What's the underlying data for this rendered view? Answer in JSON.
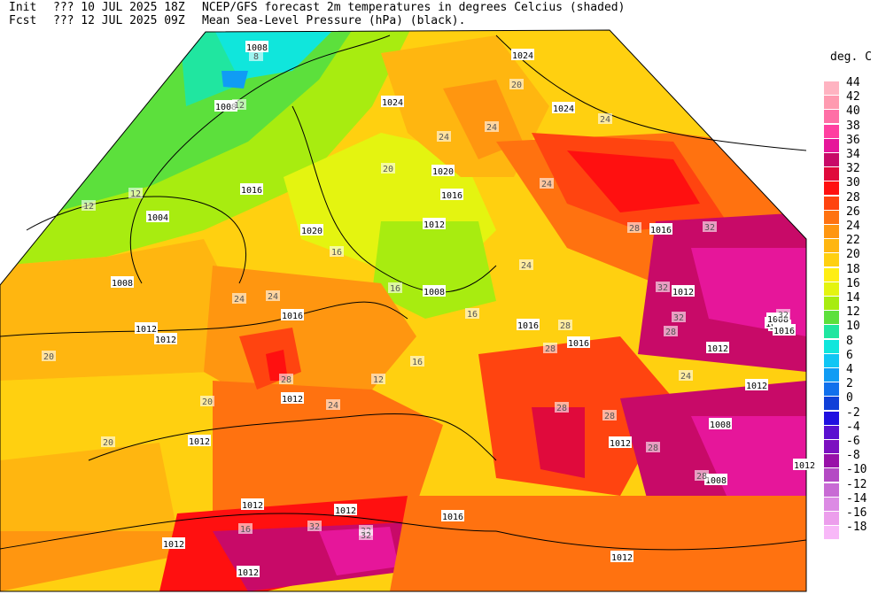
{
  "header": {
    "init_label": "Init",
    "init_time": "??? 10 JUL 2025 18Z",
    "fcst_label": "Fcst",
    "fcst_time": "??? 12 JUL 2025 09Z",
    "title_line1": "NCEP/GFS forecast 2m temperatures in degrees Celcius (shaded)",
    "title_line2": "Mean Sea-Level Pressure (hPa) (black)."
  },
  "colorbar": {
    "unit": "deg. C",
    "levels": [
      {
        "label": "44",
        "color": "#ffb3c1"
      },
      {
        "label": "42",
        "color": "#ff9ab0"
      },
      {
        "label": "40",
        "color": "#ff6fa6"
      },
      {
        "label": "38",
        "color": "#ff3fa0"
      },
      {
        "label": "36",
        "color": "#e6169a"
      },
      {
        "label": "34",
        "color": "#c80a68"
      },
      {
        "label": "32",
        "color": "#e00a3c"
      },
      {
        "label": "30",
        "color": "#ff1010"
      },
      {
        "label": "28",
        "color": "#ff4410"
      },
      {
        "label": "26",
        "color": "#ff7210"
      },
      {
        "label": "24",
        "color": "#ff9610"
      },
      {
        "label": "22",
        "color": "#ffb610"
      },
      {
        "label": "20",
        "color": "#ffd010"
      },
      {
        "label": "18",
        "color": "#ffee14"
      },
      {
        "label": "16",
        "color": "#e4f410"
      },
      {
        "label": "14",
        "color": "#a8ec10"
      },
      {
        "label": "12",
        "color": "#5ce03c"
      },
      {
        "label": "10",
        "color": "#20e6a0"
      },
      {
        "label": "8",
        "color": "#10e6dc"
      },
      {
        "label": "6",
        "color": "#10c6f4"
      },
      {
        "label": "4",
        "color": "#109cf4"
      },
      {
        "label": "2",
        "color": "#1070ec"
      },
      {
        "label": "0",
        "color": "#1040d8"
      },
      {
        "label": "-2",
        "color": "#2010e0"
      },
      {
        "label": "-4",
        "color": "#5a10d0"
      },
      {
        "label": "-6",
        "color": "#7c10c0"
      },
      {
        "label": "-8",
        "color": "#9810a8"
      },
      {
        "label": "-10",
        "color": "#b44ac4"
      },
      {
        "label": "-12",
        "color": "#c86ad4"
      },
      {
        "label": "-14",
        "color": "#dc8ae4"
      },
      {
        "label": "-16",
        "color": "#ec9eec"
      },
      {
        "label": "-18",
        "color": "#f8b8f8"
      }
    ]
  },
  "isobar_labels": [
    "1008",
    "1008",
    "1004",
    "1008",
    "1012",
    "1012",
    "1016",
    "1020",
    "1016",
    "1012",
    "1012",
    "1024",
    "1024",
    "1024",
    "1020",
    "1016",
    "1016",
    "1012",
    "1008",
    "1008",
    "1016",
    "1016",
    "1012",
    "1012",
    "1012",
    "1012",
    "1012",
    "1012",
    "1012",
    "1012",
    "1016",
    "1012",
    "1012",
    "1012",
    "1016",
    "1012",
    "1008",
    "1008"
  ],
  "temperature_labels": [
    "8",
    "12",
    "12",
    "12",
    "16",
    "16",
    "20",
    "20",
    "20",
    "20",
    "20",
    "24",
    "24",
    "24",
    "24",
    "24",
    "24",
    "24",
    "24",
    "24",
    "28",
    "28",
    "28",
    "28",
    "28",
    "28",
    "28",
    "28",
    "28",
    "32",
    "32",
    "32",
    "32",
    "32",
    "32",
    "32",
    "16",
    "16",
    "16",
    "12"
  ]
}
